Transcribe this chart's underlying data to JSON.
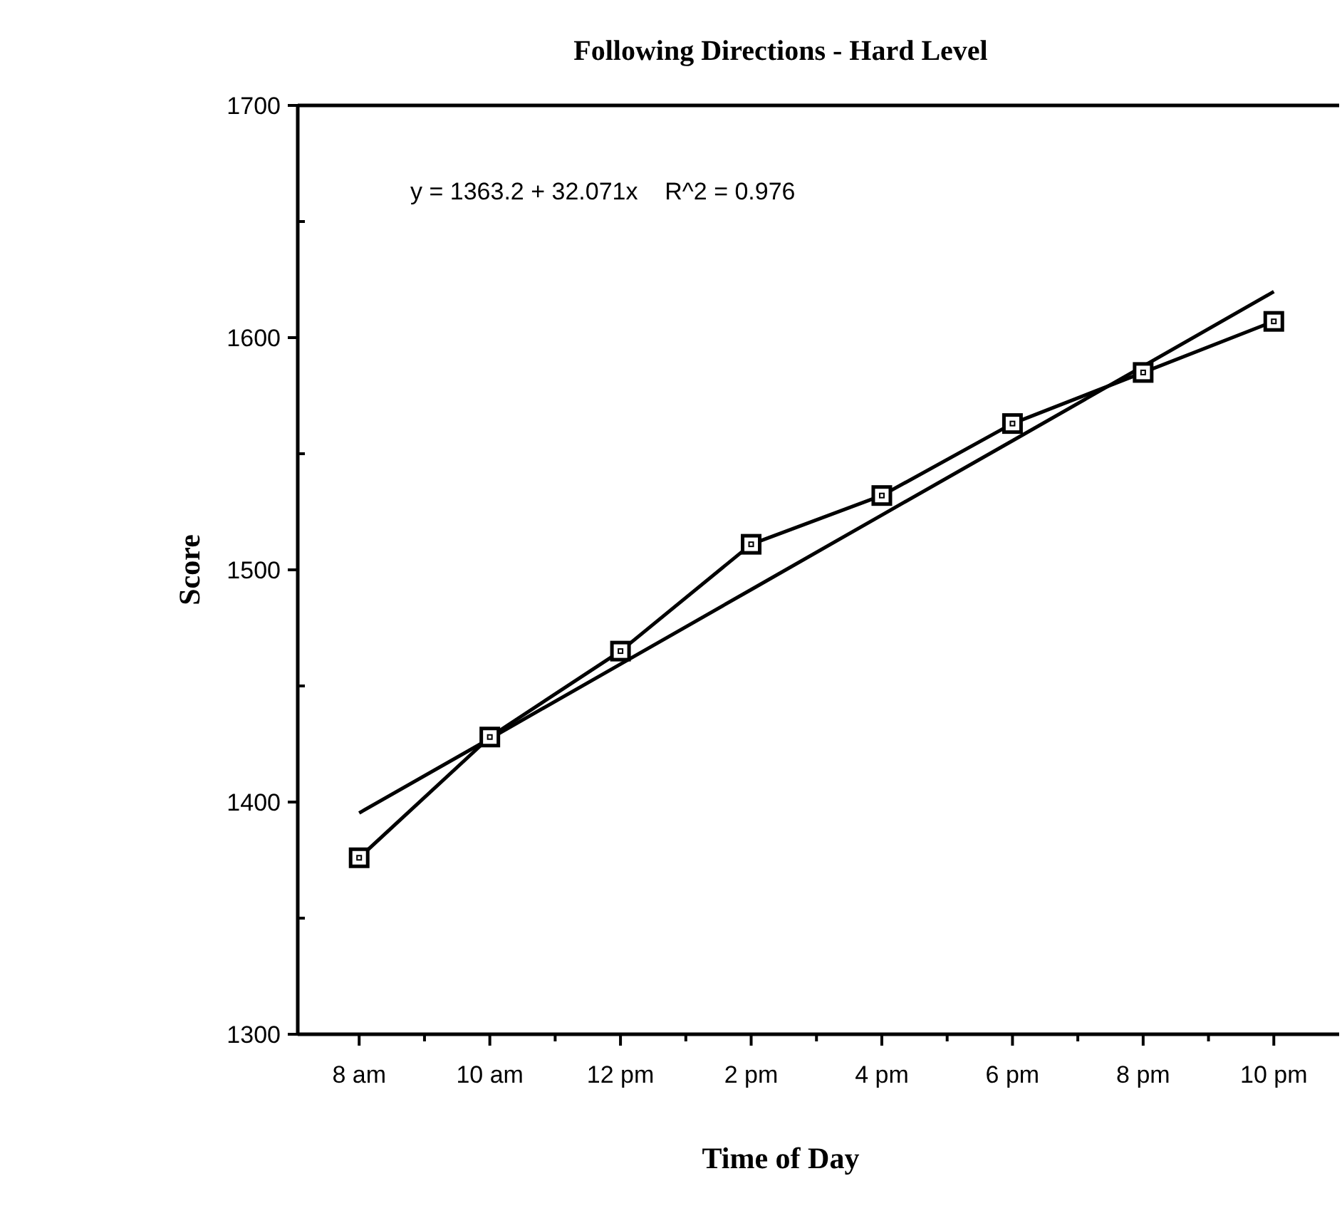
{
  "chart_data": {
    "type": "line",
    "title": "Following Directions - Hard Level",
    "xlabel": "Time of Day",
    "ylabel": "Score",
    "categories": [
      "8 am",
      "10 am",
      "12 pm",
      "2 pm",
      "4 pm",
      "6 pm",
      "8 pm",
      "10 pm"
    ],
    "series": [
      {
        "color": "#000000",
        "values": [
          1376,
          1428,
          1465,
          1511,
          1532,
          1563,
          1585,
          1607
        ],
        "marker": "square"
      },
      {
        "type": "line",
        "color": "#000000",
        "values": [
          1395.3,
          1427.3,
          1459.4,
          1491.5,
          1523.6,
          1555.6,
          1587.7,
          1619.8
        ],
        "marker": "none"
      }
    ],
    "ylim": [
      1300,
      1700
    ],
    "yticks": [
      1300,
      {
        "value": 1350,
        "label": null
      },
      1400,
      {
        "value": 1450,
        "label": null
      },
      1500,
      {
        "value": 1550,
        "label": null
      },
      1600,
      {
        "value": 1650,
        "label": null
      },
      1700
    ],
    "annotations": [
      "y = 1363.2 + 32.071x    R^2 = 0.976"
    ],
    "line_style": "solid"
  }
}
